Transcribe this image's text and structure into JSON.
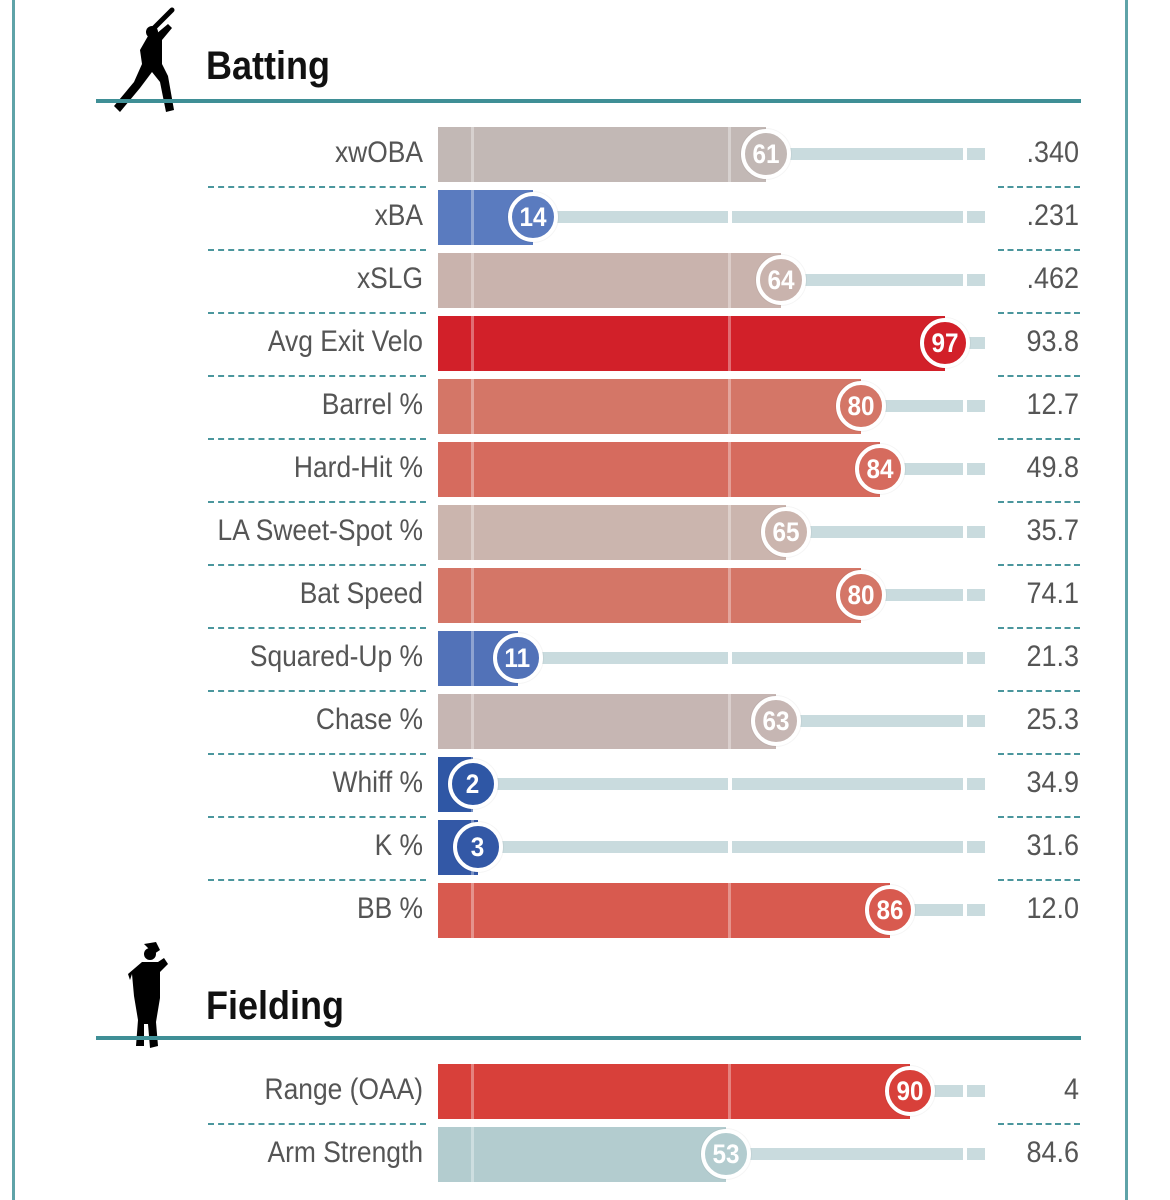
{
  "chart_data": [
    {
      "type": "bar",
      "title": "Batting",
      "xlim": [
        0,
        100
      ],
      "rows": [
        {
          "label": "xwOBA",
          "percentile": 61,
          "value": ".340",
          "color": "#c2b8b5"
        },
        {
          "label": "xBA",
          "percentile": 14,
          "value": ".231",
          "color": "#5a7bbf"
        },
        {
          "label": "xSLG",
          "percentile": 64,
          "value": ".462",
          "color": "#c9b3ad"
        },
        {
          "label": "Avg Exit Velo",
          "percentile": 97,
          "value": "93.8",
          "color": "#d22029"
        },
        {
          "label": "Barrel %",
          "percentile": 80,
          "value": "12.7",
          "color": "#d47667"
        },
        {
          "label": "Hard-Hit %",
          "percentile": 84,
          "value": "49.8",
          "color": "#d66b5e"
        },
        {
          "label": "LA Sweet-Spot %",
          "percentile": 65,
          "value": "35.7",
          "color": "#cbb5ae"
        },
        {
          "label": "Bat Speed",
          "percentile": 80,
          "value": "74.1",
          "color": "#d47667"
        },
        {
          "label": "Squared-Up %",
          "percentile": 11,
          "value": "21.3",
          "color": "#5272b8"
        },
        {
          "label": "Chase %",
          "percentile": 63,
          "value": "25.3",
          "color": "#c6b6b3"
        },
        {
          "label": "Whiff %",
          "percentile": 2,
          "value": "34.9",
          "color": "#2f57a5"
        },
        {
          "label": "K %",
          "percentile": 3,
          "value": "31.6",
          "color": "#3358a6"
        },
        {
          "label": "BB %",
          "percentile": 86,
          "value": "12.0",
          "color": "#d85a4f"
        }
      ]
    },
    {
      "type": "bar",
      "title": "Fielding",
      "xlim": [
        0,
        100
      ],
      "rows": [
        {
          "label": "Range (OAA)",
          "percentile": 90,
          "value": "4",
          "color": "#d8403a"
        },
        {
          "label": "Arm Strength",
          "percentile": 53,
          "value": "84.6",
          "color": "#b3cccf"
        }
      ]
    }
  ],
  "icons": {
    "batting": "batter-silhouette-icon",
    "fielding": "fielder-silhouette-icon"
  }
}
